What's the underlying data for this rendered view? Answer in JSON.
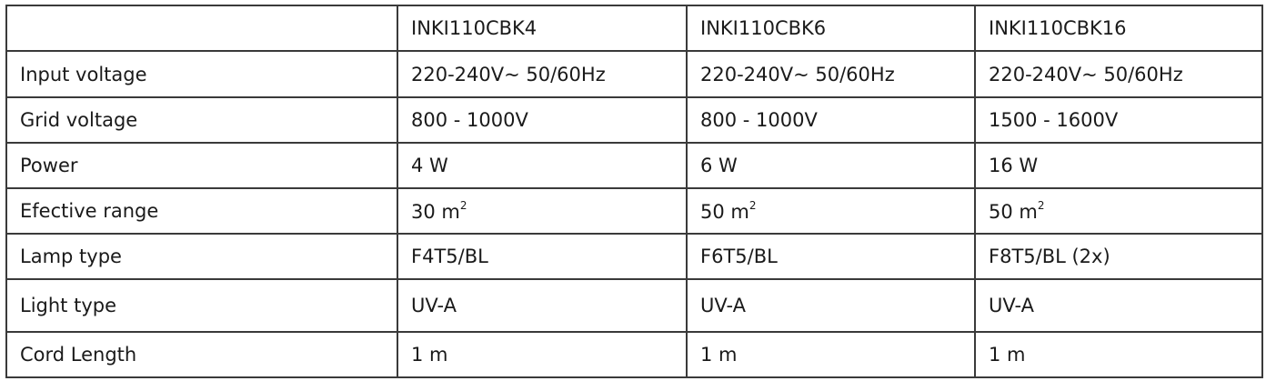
{
  "header": [
    "",
    "INKI110CBK4",
    "INKI110CBK6",
    "INKI110CBK16"
  ],
  "rows": [
    {
      "label": "Input voltage",
      "values": [
        "220-240V~ 50/60Hz",
        "220-240V~ 50/60Hz",
        "220-240V~ 50/60Hz"
      ]
    },
    {
      "label": "Grid voltage",
      "values": [
        "800 - 1000V",
        "800 - 1000V",
        "1500 - 1600V"
      ]
    },
    {
      "label": "Power",
      "values": [
        "4 W",
        "6 W",
        "16 W"
      ]
    },
    {
      "label": "Efective range",
      "values": [
        "30 m",
        "50 m",
        "50 m"
      ],
      "sup": "2"
    },
    {
      "label": "Lamp type",
      "values": [
        "F4T5/BL",
        "F6T5/BL",
        "F8T5/BL (2x)"
      ]
    },
    {
      "label": "Light type",
      "values": [
        "UV-A",
        "UV-A",
        "UV-A"
      ]
    },
    {
      "label": "Cord Length",
      "values": [
        "1 m",
        "1 m",
        "1 m"
      ]
    }
  ]
}
